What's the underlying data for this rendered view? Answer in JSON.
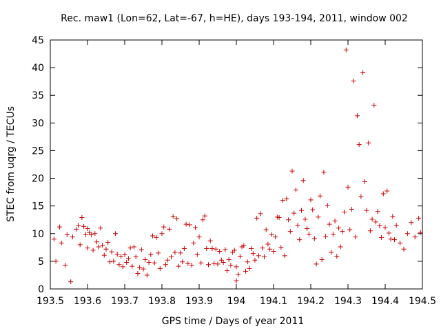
{
  "chart_data": {
    "type": "scatter",
    "title": "Rec. maw1 (Lon=62, Lat=-67, h=HE), days 193-194, 2011, window 002",
    "xlabel": "GPS time / Days of year 2011",
    "ylabel": "STEC from uqrg / TECUs",
    "xlim": [
      193.5,
      194.5
    ],
    "ylim": [
      0,
      45
    ],
    "xticks": [
      193.5,
      193.6,
      193.7,
      193.8,
      193.9,
      194.0,
      194.1,
      194.2,
      194.3,
      194.4,
      194.5
    ],
    "xtick_labels": [
      "193.5",
      "193.6",
      "193.7",
      "193.8",
      "193.9",
      "194",
      "194.1",
      "194.2",
      "194.3",
      "194.4",
      "194.5"
    ],
    "yticks": [
      0,
      5,
      10,
      15,
      20,
      25,
      30,
      35,
      40,
      45
    ],
    "ytick_labels": [
      "0",
      "5",
      "10",
      "15",
      "20",
      "25",
      "30",
      "35",
      "40",
      "45"
    ],
    "marker": "+",
    "color": "#cc0000",
    "series": [
      {
        "name": "STEC",
        "points": [
          [
            193.51,
            9.0
          ],
          [
            193.515,
            5.0
          ],
          [
            193.525,
            11.2
          ],
          [
            193.53,
            8.3
          ],
          [
            193.54,
            4.3
          ],
          [
            193.545,
            9.8
          ],
          [
            193.555,
            1.3
          ],
          [
            193.56,
            9.4
          ],
          [
            193.57,
            10.8
          ],
          [
            193.575,
            11.5
          ],
          [
            193.58,
            8.0
          ],
          [
            193.585,
            12.9
          ],
          [
            193.59,
            11.3
          ],
          [
            193.595,
            9.8
          ],
          [
            193.6,
            7.4
          ],
          [
            193.6,
            10.9
          ],
          [
            193.605,
            10.2
          ],
          [
            193.61,
            9.8
          ],
          [
            193.615,
            7.0
          ],
          [
            193.62,
            10.0
          ],
          [
            193.625,
            8.5
          ],
          [
            193.63,
            7.6
          ],
          [
            193.635,
            11.0
          ],
          [
            193.64,
            7.9
          ],
          [
            193.645,
            6.1
          ],
          [
            193.65,
            7.2
          ],
          [
            193.655,
            8.4
          ],
          [
            193.66,
            4.9
          ],
          [
            193.665,
            6.7
          ],
          [
            193.67,
            5.0
          ],
          [
            193.675,
            10.0
          ],
          [
            193.68,
            6.3
          ],
          [
            193.685,
            4.4
          ],
          [
            193.69,
            5.9
          ],
          [
            193.695,
            4.0
          ],
          [
            193.7,
            6.2
          ],
          [
            193.705,
            4.8
          ],
          [
            193.71,
            5.5
          ],
          [
            193.715,
            7.4
          ],
          [
            193.72,
            4.1
          ],
          [
            193.725,
            7.6
          ],
          [
            193.73,
            5.8
          ],
          [
            193.735,
            2.8
          ],
          [
            193.74,
            3.9
          ],
          [
            193.745,
            7.1
          ],
          [
            193.75,
            3.6
          ],
          [
            193.755,
            5.3
          ],
          [
            193.76,
            2.5
          ],
          [
            193.765,
            4.8
          ],
          [
            193.77,
            6.2
          ],
          [
            193.775,
            9.6
          ],
          [
            193.78,
            4.7
          ],
          [
            193.785,
            9.3
          ],
          [
            193.79,
            6.5
          ],
          [
            193.795,
            3.7
          ],
          [
            193.8,
            10.0
          ],
          [
            193.805,
            11.2
          ],
          [
            193.81,
            4.4
          ],
          [
            193.815,
            5.2
          ],
          [
            193.82,
            10.8
          ],
          [
            193.825,
            5.8
          ],
          [
            193.83,
            13.1
          ],
          [
            193.835,
            6.6
          ],
          [
            193.84,
            12.7
          ],
          [
            193.845,
            4.1
          ],
          [
            193.85,
            6.5
          ],
          [
            193.855,
            4.9
          ],
          [
            193.86,
            7.3
          ],
          [
            193.865,
            11.7
          ],
          [
            193.87,
            4.6
          ],
          [
            193.875,
            11.6
          ],
          [
            193.88,
            4.3
          ],
          [
            193.885,
            8.3
          ],
          [
            193.89,
            11.1
          ],
          [
            193.895,
            6.2
          ],
          [
            193.9,
            9.4
          ],
          [
            193.905,
            4.7
          ],
          [
            193.91,
            12.5
          ],
          [
            193.915,
            13.2
          ],
          [
            193.92,
            7.3
          ],
          [
            193.925,
            4.4
          ],
          [
            193.93,
            8.7
          ],
          [
            193.935,
            7.3
          ],
          [
            193.94,
            4.6
          ],
          [
            193.945,
            7.2
          ],
          [
            193.95,
            4.5
          ],
          [
            193.955,
            6.8
          ],
          [
            193.96,
            5.2
          ],
          [
            193.965,
            4.8
          ],
          [
            193.97,
            7.1
          ],
          [
            193.975,
            3.3
          ],
          [
            193.98,
            5.3
          ],
          [
            193.985,
            4.3
          ],
          [
            193.99,
            6.6
          ],
          [
            193.995,
            7.0
          ],
          [
            194.0,
            1.5
          ],
          [
            194.0,
            4.0
          ],
          [
            194.005,
            2.6
          ],
          [
            194.01,
            5.9
          ],
          [
            194.015,
            7.6
          ],
          [
            194.02,
            7.8
          ],
          [
            194.025,
            3.2
          ],
          [
            194.03,
            4.9
          ],
          [
            194.035,
            3.7
          ],
          [
            194.04,
            7.3
          ],
          [
            194.045,
            6.4
          ],
          [
            194.05,
            5.2
          ],
          [
            194.055,
            12.8
          ],
          [
            194.06,
            6.0
          ],
          [
            194.065,
            13.6
          ],
          [
            194.07,
            7.4
          ],
          [
            194.075,
            5.8
          ],
          [
            194.08,
            10.7
          ],
          [
            194.085,
            8.1
          ],
          [
            194.09,
            7.2
          ],
          [
            194.095,
            9.8
          ],
          [
            194.1,
            6.8
          ],
          [
            194.105,
            9.4
          ],
          [
            194.11,
            13.0
          ],
          [
            194.115,
            12.9
          ],
          [
            194.12,
            7.5
          ],
          [
            194.125,
            16.0
          ],
          [
            194.13,
            6.0
          ],
          [
            194.135,
            16.3
          ],
          [
            194.14,
            12.5
          ],
          [
            194.145,
            10.4
          ],
          [
            194.15,
            21.3
          ],
          [
            194.155,
            13.7
          ],
          [
            194.16,
            17.9
          ],
          [
            194.165,
            11.5
          ],
          [
            194.17,
            8.9
          ],
          [
            194.175,
            14.2
          ],
          [
            194.18,
            19.6
          ],
          [
            194.185,
            12.6
          ],
          [
            194.19,
            10.9
          ],
          [
            194.195,
            9.9
          ],
          [
            194.2,
            16.1
          ],
          [
            194.205,
            14.3
          ],
          [
            194.21,
            9.1
          ],
          [
            194.215,
            4.5
          ],
          [
            194.22,
            13.0
          ],
          [
            194.225,
            16.8
          ],
          [
            194.23,
            5.3
          ],
          [
            194.235,
            21.1
          ],
          [
            194.24,
            9.5
          ],
          [
            194.245,
            15.1
          ],
          [
            194.25,
            11.7
          ],
          [
            194.255,
            6.6
          ],
          [
            194.26,
            9.9
          ],
          [
            194.265,
            12.3
          ],
          [
            194.27,
            5.9
          ],
          [
            194.275,
            11.0
          ],
          [
            194.28,
            7.6
          ],
          [
            194.285,
            10.4
          ],
          [
            194.29,
            13.9
          ],
          [
            194.295,
            43.2
          ],
          [
            194.3,
            18.4
          ],
          [
            194.305,
            10.7
          ],
          [
            194.31,
            14.4
          ],
          [
            194.315,
            37.6
          ],
          [
            194.32,
            9.4
          ],
          [
            194.325,
            31.3
          ],
          [
            194.33,
            26.1
          ],
          [
            194.335,
            16.7
          ],
          [
            194.34,
            39.1
          ],
          [
            194.345,
            19.4
          ],
          [
            194.35,
            14.2
          ],
          [
            194.355,
            26.4
          ],
          [
            194.36,
            10.5
          ],
          [
            194.365,
            12.6
          ],
          [
            194.37,
            33.2
          ],
          [
            194.375,
            12.1
          ],
          [
            194.38,
            14.0
          ],
          [
            194.385,
            11.4
          ],
          [
            194.39,
            9.3
          ],
          [
            194.395,
            17.2
          ],
          [
            194.4,
            11.1
          ],
          [
            194.405,
            17.7
          ],
          [
            194.41,
            10.1
          ],
          [
            194.415,
            9.0
          ],
          [
            194.42,
            13.1
          ],
          [
            194.425,
            8.9
          ],
          [
            194.43,
            11.5
          ],
          [
            194.44,
            8.3
          ],
          [
            194.45,
            7.2
          ],
          [
            194.46,
            10.0
          ],
          [
            194.47,
            12.0
          ],
          [
            194.48,
            9.4
          ],
          [
            194.49,
            12.8
          ],
          [
            194.495,
            10.2
          ]
        ]
      }
    ]
  }
}
